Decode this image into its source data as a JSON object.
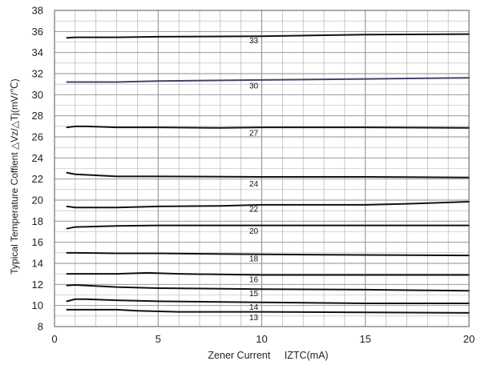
{
  "chart_data": {
    "type": "line",
    "xlabel": "Zener Current",
    "xlabel_symbol": "IZTC(mA)",
    "ylabel": "Typical Temperature Coffient  △Vz/△Tj(mV/℃)",
    "xlim": [
      0,
      20
    ],
    "ylim": [
      8,
      38
    ],
    "x_ticks": [
      "0",
      "5",
      "10",
      "15",
      "20"
    ],
    "y_ticks": [
      "8",
      "10",
      "12",
      "14",
      "16",
      "18",
      "20",
      "22",
      "24",
      "26",
      "28",
      "30",
      "32",
      "34",
      "36",
      "38"
    ],
    "grid": true,
    "colors": {
      "line": "#111111",
      "line_30": "#4a3f6b",
      "grid": "#b3b3b3",
      "major_grid": "#8c8c8c"
    },
    "series": [
      {
        "name": "33",
        "label_at": [
          9.4,
          34.9
        ],
        "x": [
          0.6,
          1,
          3,
          5,
          10,
          15,
          20
        ],
        "y": [
          35.4,
          35.45,
          35.45,
          35.5,
          35.55,
          35.7,
          35.75
        ]
      },
      {
        "name": "30",
        "label_at": [
          9.4,
          30.6
        ],
        "x": [
          0.6,
          1,
          3,
          5,
          10,
          15,
          20
        ],
        "y": [
          31.2,
          31.2,
          31.2,
          31.3,
          31.4,
          31.5,
          31.6
        ]
      },
      {
        "name": "27",
        "label_at": [
          9.4,
          26.1
        ],
        "x": [
          0.6,
          1,
          1.5,
          3,
          5,
          8,
          10,
          15,
          20
        ],
        "y": [
          26.9,
          27.0,
          27.0,
          26.9,
          26.9,
          26.85,
          26.9,
          26.9,
          26.85
        ]
      },
      {
        "name": "24",
        "label_at": [
          9.4,
          21.3
        ],
        "x": [
          0.6,
          1,
          2,
          3,
          5,
          10,
          15,
          20
        ],
        "y": [
          22.6,
          22.45,
          22.35,
          22.25,
          22.25,
          22.2,
          22.2,
          22.15
        ]
      },
      {
        "name": "22",
        "label_at": [
          9.4,
          18.9
        ],
        "x": [
          0.6,
          1,
          3,
          5,
          8,
          10,
          15,
          17,
          20
        ],
        "y": [
          19.4,
          19.3,
          19.3,
          19.4,
          19.45,
          19.55,
          19.55,
          19.65,
          19.85
        ]
      },
      {
        "name": "20",
        "label_at": [
          9.4,
          16.8
        ],
        "x": [
          0.6,
          1,
          3,
          5,
          10,
          15,
          20
        ],
        "y": [
          17.3,
          17.45,
          17.55,
          17.6,
          17.6,
          17.6,
          17.6
        ]
      },
      {
        "name": "18",
        "label_at": [
          9.4,
          14.2
        ],
        "x": [
          0.6,
          1,
          3,
          5,
          10,
          15,
          20
        ],
        "y": [
          15.0,
          15.0,
          14.95,
          14.95,
          14.85,
          14.8,
          14.75
        ]
      },
      {
        "name": "16",
        "label_at": [
          9.4,
          12.2
        ],
        "x": [
          0.6,
          1,
          3,
          4.5,
          6,
          10,
          15,
          20
        ],
        "y": [
          13.0,
          13.0,
          13.0,
          13.1,
          13.0,
          12.9,
          12.9,
          12.9
        ]
      },
      {
        "name": "15",
        "label_at": [
          9.4,
          10.9
        ],
        "x": [
          0.6,
          1,
          3,
          5,
          10,
          15,
          20
        ],
        "y": [
          11.9,
          11.95,
          11.75,
          11.65,
          11.55,
          11.5,
          11.4
        ]
      },
      {
        "name": "14",
        "label_at": [
          9.4,
          9.6
        ],
        "x": [
          0.6,
          1,
          1.5,
          3,
          5,
          10,
          15,
          20
        ],
        "y": [
          10.4,
          10.6,
          10.6,
          10.5,
          10.4,
          10.3,
          10.2,
          10.2
        ]
      },
      {
        "name": "13",
        "label_at": [
          9.4,
          8.6
        ],
        "x": [
          0.6,
          1,
          3,
          4,
          6,
          10,
          15,
          20
        ],
        "y": [
          9.6,
          9.6,
          9.6,
          9.5,
          9.4,
          9.4,
          9.35,
          9.3
        ]
      }
    ]
  }
}
